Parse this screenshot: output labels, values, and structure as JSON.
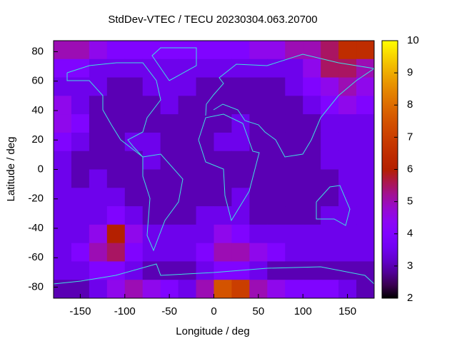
{
  "chart_data": {
    "type": "heatmap",
    "title": "StdDev-VTEC / TECU 20230304.063.20700",
    "xlabel": "Longitude / deg",
    "ylabel": "Latitude / deg",
    "xlim": [
      -180,
      180
    ],
    "ylim": [
      -87.5,
      87.5
    ],
    "xticks": [
      -150,
      -100,
      -50,
      0,
      50,
      100,
      150
    ],
    "yticks": [
      -80,
      -60,
      -40,
      -20,
      0,
      20,
      40,
      60,
      80
    ],
    "xbins": [
      -180,
      -160,
      -140,
      -120,
      -100,
      -80,
      -60,
      -40,
      -20,
      0,
      20,
      40,
      60,
      80,
      100,
      120,
      140,
      160,
      180
    ],
    "ybins": [
      87.5,
      75,
      62.5,
      50,
      37.5,
      25,
      12.5,
      0,
      -12.5,
      -25,
      -37.5,
      -50,
      -62.5,
      -75,
      -87.5
    ],
    "values": [
      [
        5,
        5,
        4.5,
        4,
        4,
        4,
        4,
        4,
        4,
        4,
        4,
        4.5,
        4.5,
        5,
        5,
        5.5,
        6.5,
        6.5
      ],
      [
        4,
        4,
        3.5,
        3.5,
        3.5,
        3.5,
        3.5,
        3.5,
        3.5,
        3.5,
        3.5,
        3.5,
        3.5,
        3.5,
        4.5,
        5.5,
        5.5,
        5
      ],
      [
        3.5,
        3.5,
        3.5,
        3,
        3,
        3.5,
        3.5,
        3.5,
        3,
        3,
        3,
        3,
        3,
        3.5,
        4,
        4.5,
        5,
        4.5
      ],
      [
        4.5,
        3.5,
        3,
        3,
        3,
        3,
        3.5,
        3,
        3,
        3,
        3,
        3,
        3,
        3,
        3.5,
        4,
        4.5,
        4
      ],
      [
        4.5,
        4,
        3,
        3,
        3,
        3,
        3,
        3,
        3,
        3,
        3.5,
        3,
        3,
        3,
        3,
        3.5,
        3.5,
        3.5
      ],
      [
        4,
        3.5,
        3,
        3,
        3.5,
        3.5,
        3,
        3,
        3,
        3.5,
        3.5,
        3,
        3,
        3,
        3,
        3.5,
        3.5,
        3.5
      ],
      [
        3.5,
        3,
        3,
        3,
        3,
        3.5,
        3,
        3,
        3,
        3,
        3,
        3,
        3,
        3,
        3,
        3.5,
        3.5,
        3.5
      ],
      [
        3.5,
        3,
        3.5,
        3,
        3,
        3,
        3,
        3,
        3,
        3,
        3,
        3,
        3,
        3,
        3,
        3,
        3.5,
        3.5
      ],
      [
        3.5,
        3.5,
        3.5,
        3.5,
        3,
        3,
        3,
        3,
        3,
        3,
        3.5,
        3,
        3,
        3,
        3,
        3,
        3.5,
        3.5
      ],
      [
        3.5,
        3.5,
        3.5,
        4,
        3.5,
        3,
        3,
        3,
        3.5,
        3.5,
        3.5,
        3,
        3,
        3,
        3,
        3.5,
        3.5,
        3.5
      ],
      [
        3.5,
        3.5,
        4.5,
        6,
        4.5,
        3.5,
        3.5,
        3.5,
        3.5,
        4.5,
        4,
        3.5,
        3.5,
        3.5,
        3.5,
        3.5,
        3.5,
        3.5
      ],
      [
        3.5,
        4,
        5,
        5.5,
        4,
        3.5,
        3.5,
        3.5,
        4,
        5,
        5,
        4.5,
        4,
        3.5,
        3.5,
        3.5,
        3.5,
        3.5
      ],
      [
        3.5,
        3.5,
        4,
        4,
        3.5,
        3,
        3,
        3,
        3.5,
        4,
        4,
        3.5,
        3,
        3,
        3,
        3,
        3,
        3
      ],
      [
        3,
        3,
        3.5,
        4.5,
        5,
        4.5,
        4,
        3.5,
        5,
        7.5,
        7,
        5,
        4.5,
        4,
        4,
        4,
        3.5,
        3
      ]
    ],
    "clim": [
      2,
      10
    ],
    "cticks": [
      2,
      3,
      4,
      5,
      6,
      7,
      8,
      9,
      10
    ],
    "palette": "gnuplot",
    "coastline_color": "#40e0e0"
  }
}
